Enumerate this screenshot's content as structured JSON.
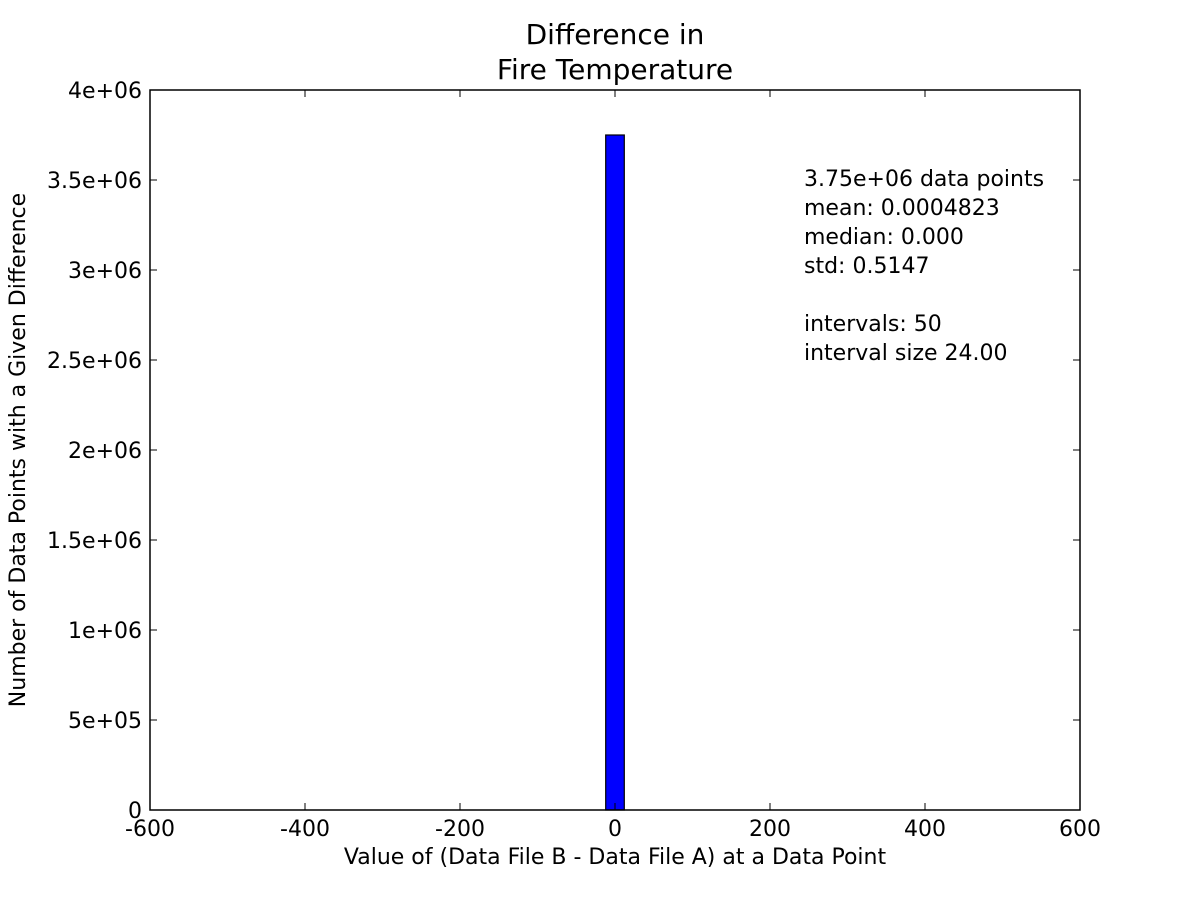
{
  "chart_data": {
    "type": "bar",
    "title_lines": [
      "Difference in",
      "Fire Temperature"
    ],
    "xlabel": "Value of (Data File B - Data File A) at a Data Point",
    "ylabel": "Number of Data Points with a Given Difference",
    "xlim": [
      -600,
      600
    ],
    "ylim": [
      0,
      4000000
    ],
    "x_ticks": [
      -600,
      -400,
      -200,
      0,
      200,
      400,
      600
    ],
    "x_tick_labels": [
      "-600",
      "-400",
      "-200",
      "0",
      "200",
      "400",
      "600"
    ],
    "y_ticks": [
      0,
      500000,
      1000000,
      1500000,
      2000000,
      2500000,
      3000000,
      3500000,
      4000000
    ],
    "y_tick_labels": [
      "0",
      "5e+05",
      "1e+06",
      "1.5e+06",
      "2e+06",
      "2.5e+06",
      "3e+06",
      "3.5e+06",
      "4e+06"
    ],
    "bars": [
      {
        "x_start": -12,
        "x_end": 12,
        "value": 3750000
      }
    ],
    "bar_color": "#0000ff",
    "grid": false,
    "stats_lines": [
      "3.75e+06 data points",
      "mean: 0.0004823",
      "median: 0.000",
      "std: 0.5147",
      "",
      "intervals: 50",
      "interval size 24.00"
    ]
  }
}
